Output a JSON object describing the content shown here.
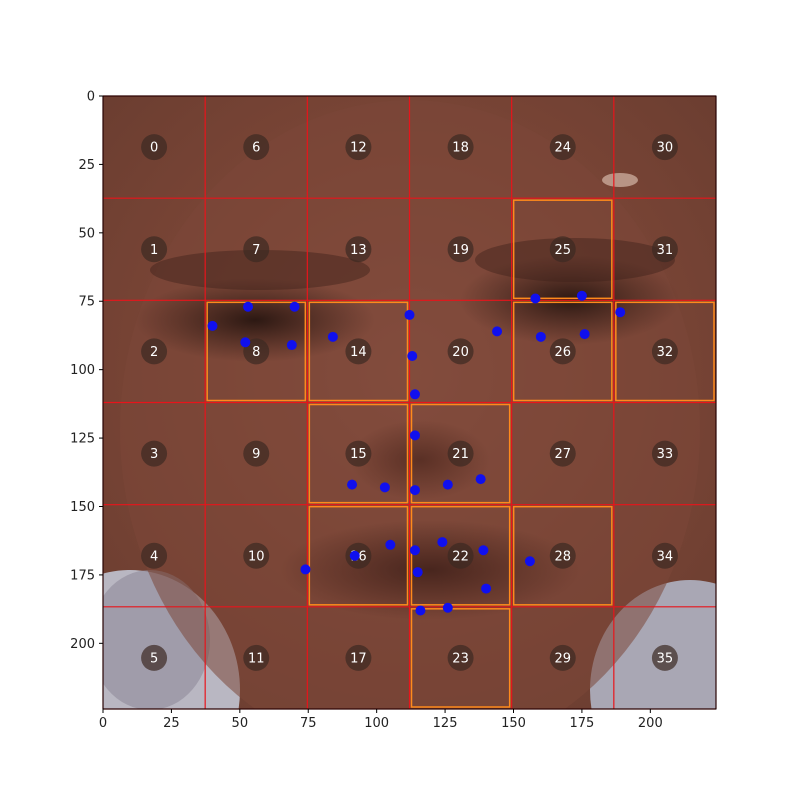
{
  "image_axes": {
    "xlim": [
      0,
      224
    ],
    "ylim": [
      224,
      0
    ],
    "x_ticks": [
      0,
      25,
      50,
      75,
      100,
      125,
      150,
      175,
      200
    ],
    "y_ticks": [
      0,
      25,
      50,
      75,
      100,
      125,
      150,
      175,
      200
    ]
  },
  "grid": {
    "rows": 6,
    "cols": 6,
    "line_color": "#e8141b",
    "cell_ids": [
      [
        0,
        6,
        12,
        18,
        24,
        30
      ],
      [
        1,
        7,
        13,
        19,
        25,
        31
      ],
      [
        2,
        8,
        14,
        20,
        26,
        32
      ],
      [
        3,
        9,
        15,
        21,
        27,
        33
      ],
      [
        4,
        10,
        16,
        22,
        28,
        34
      ],
      [
        5,
        11,
        17,
        23,
        29,
        35
      ]
    ],
    "highlighted_cells": [
      8,
      14,
      15,
      16,
      21,
      22,
      23,
      25,
      26,
      28,
      32
    ],
    "highlight_color": "#ff8a1c",
    "label_badge_color": "#3c2a22"
  },
  "landmarks": {
    "color": "#1010ee",
    "points": [
      [
        40,
        84
      ],
      [
        52,
        90
      ],
      [
        53,
        77
      ],
      [
        69,
        91
      ],
      [
        70,
        77
      ],
      [
        84,
        88
      ],
      [
        112,
        80
      ],
      [
        113,
        95
      ],
      [
        114,
        109
      ],
      [
        114,
        124
      ],
      [
        144,
        86
      ],
      [
        158,
        74
      ],
      [
        160,
        88
      ],
      [
        175,
        73
      ],
      [
        176,
        87
      ],
      [
        189,
        79
      ],
      [
        91,
        142
      ],
      [
        103,
        143
      ],
      [
        114,
        144
      ],
      [
        126,
        142
      ],
      [
        138,
        140
      ],
      [
        74,
        173
      ],
      [
        92,
        168
      ],
      [
        105,
        164
      ],
      [
        114,
        166
      ],
      [
        115,
        174
      ],
      [
        124,
        163
      ],
      [
        139,
        166
      ],
      [
        140,
        180
      ],
      [
        156,
        170
      ],
      [
        116,
        188
      ],
      [
        126,
        187
      ]
    ]
  }
}
